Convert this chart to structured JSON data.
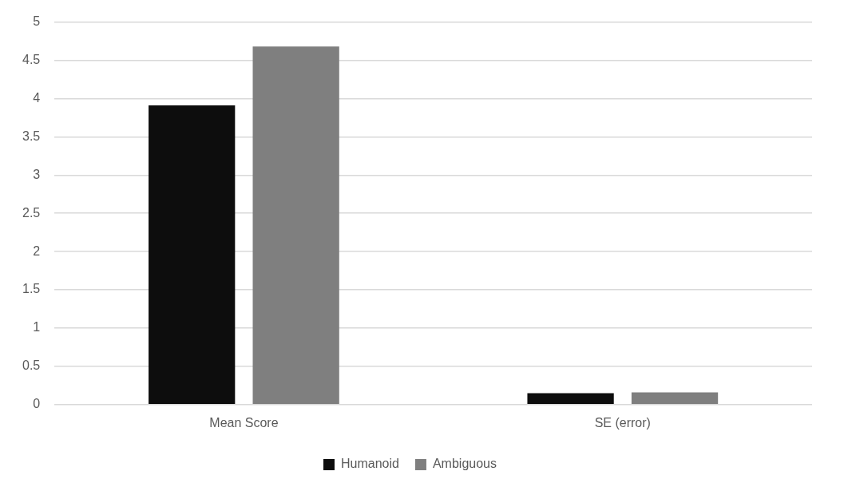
{
  "chart_data": {
    "type": "bar",
    "categories": [
      "Mean Score",
      "SE (error)"
    ],
    "series": [
      {
        "name": "Humanoid",
        "color": "#0d0d0d",
        "values": [
          3.91,
          0.15
        ]
      },
      {
        "name": "Ambiguous",
        "color": "#7f7f7f",
        "values": [
          4.68,
          0.16
        ]
      }
    ],
    "ylim": [
      0,
      5
    ],
    "yticks": [
      0,
      0.5,
      1,
      1.5,
      2,
      2.5,
      3,
      3.5,
      4,
      4.5,
      5
    ],
    "grid": "y",
    "legend": "bottom"
  }
}
